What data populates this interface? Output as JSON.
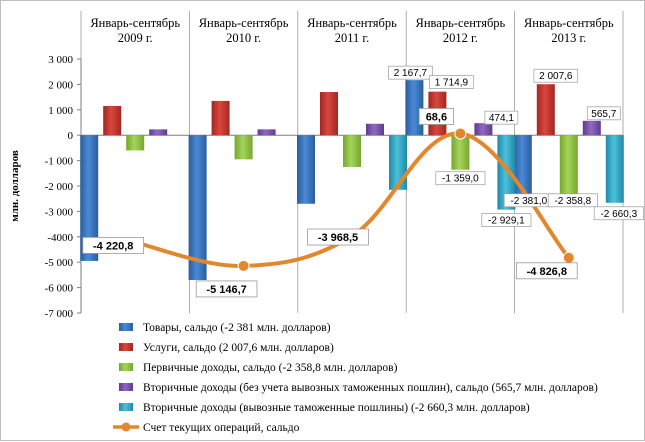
{
  "chart_data": {
    "type": "bar",
    "categories": [
      "Январь-сентябрь 2009 г.",
      "Январь-сентябрь 2010 г.",
      "Январь-сентябрь 2011 г.",
      "Январь-сентябрь 2012 г.",
      "Январь-сентябрь 2013 г."
    ],
    "category_lines": [
      [
        "Январь-сентябрь",
        "2009 г."
      ],
      [
        "Январь-сентябрь",
        "2010 г."
      ],
      [
        "Январь-сентябрь",
        "2011 г."
      ],
      [
        "Январь-сентябрь",
        "2012 г."
      ],
      [
        "Январь-сентябрь",
        "2013 г."
      ]
    ],
    "ylabel": "млн. долларов",
    "ylim": [
      -7000,
      3000
    ],
    "yticks": [
      3000,
      2000,
      1000,
      0,
      -1000,
      -2000,
      -3000,
      -4000,
      -5000,
      -6000,
      -7000
    ],
    "ytick_labels": [
      "3 000",
      "2 000",
      "1 000",
      "0",
      "-1 000",
      "-2 000",
      "-3 000",
      "-4000",
      "-5 000",
      "-6 000",
      "-7 000"
    ],
    "grid": "vertical separators between periods",
    "legend_position": "bottom",
    "series": [
      {
        "name": "Товары, сальдо (-2 381 млн. долларов)",
        "kind": "bar",
        "color": "#2f6fb7",
        "values": [
          -4950,
          -5700,
          -2700,
          2167.7,
          -2381.0
        ],
        "labels": [
          "",
          "",
          "",
          "2 167,7",
          "-2 381,0"
        ]
      },
      {
        "name": "Услуги, сальдо (2 007,6 млн. долларов)",
        "kind": "bar",
        "color": "#c0342e",
        "values": [
          1150,
          1350,
          1700,
          1714.9,
          2007.6
        ],
        "labels": [
          "",
          "",
          "",
          "1 714,9",
          "2 007,6"
        ]
      },
      {
        "name": "Первичные доходы, сальдо (-2 358,8 млн. долларов)",
        "kind": "bar",
        "color": "#8cbf3f",
        "values": [
          -600,
          -950,
          -1250,
          -1359.0,
          -2358.8
        ],
        "labels": [
          "",
          "",
          "",
          "-1 359,0",
          "-2 358,8"
        ]
      },
      {
        "name": "Вторичные доходы (без учета вывозных таможенных пошлин), сальдо (565,7 млн. долларов)",
        "kind": "bar",
        "color": "#7851a9",
        "values": [
          230,
          230,
          450,
          474.1,
          565.7
        ],
        "labels": [
          "",
          "",
          "",
          "474,1",
          "565,7"
        ]
      },
      {
        "name": "Вторичные доходы (вывозные таможенные пошлины) (-2 660,3 млн. долларов)",
        "kind": "bar",
        "color": "#2fa7c4",
        "values": [
          0,
          0,
          -2150,
          -2929.1,
          -2660.3
        ],
        "labels": [
          "",
          "",
          "",
          "-2 929,1",
          "-2 660,3"
        ]
      },
      {
        "name": "Счет текущих операций, сальдо",
        "kind": "line",
        "color": "#e3872d",
        "values": [
          -4220.8,
          -5146.7,
          -3968.5,
          68.6,
          -4826.8
        ],
        "labels": [
          "-4 220,8",
          "-5 146,7",
          "-3 968,5",
          "68,6",
          "-4 826,8"
        ]
      }
    ]
  }
}
